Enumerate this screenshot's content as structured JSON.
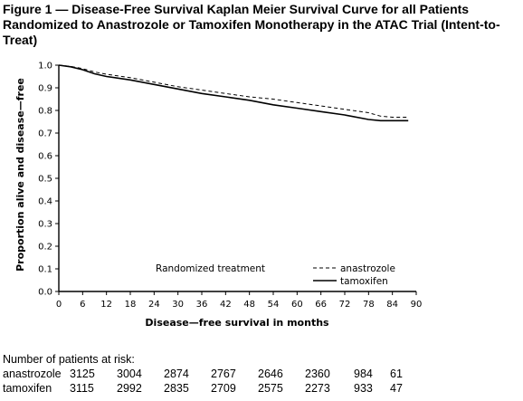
{
  "figure": {
    "title": "Figure 1 — Disease-Free Survival Kaplan Meier Survival Curve for all Patients Randomized to Anastrozole or Tamoxifen Monotherapy in the ATAC Trial (Intent-to-Treat)"
  },
  "chart_data": {
    "type": "line",
    "title": "",
    "xlabel": "Disease—free survival in months",
    "ylabel": "Proportion alive and disease—free",
    "xlim": [
      0,
      90
    ],
    "ylim": [
      0.0,
      1.0
    ],
    "x_ticks": [
      "0",
      "6",
      "12",
      "18",
      "24",
      "30",
      "36",
      "42",
      "48",
      "54",
      "60",
      "66",
      "72",
      "78",
      "84",
      "90"
    ],
    "y_ticks": [
      "0.0",
      "0.1",
      "0.2",
      "0.3",
      "0.4",
      "0.5",
      "0.6",
      "0.7",
      "0.8",
      "0.9",
      "1.0"
    ],
    "legend_title": "Randomized treatment",
    "legend_position": "bottom-right",
    "grid": false,
    "series": [
      {
        "name": "anastrozole",
        "style": "dashed",
        "x": [
          0,
          3,
          6,
          9,
          12,
          18,
          24,
          30,
          36,
          42,
          48,
          54,
          60,
          66,
          72,
          78,
          81,
          84,
          87,
          88
        ],
        "y": [
          1.0,
          0.995,
          0.985,
          0.97,
          0.96,
          0.945,
          0.925,
          0.905,
          0.89,
          0.875,
          0.86,
          0.85,
          0.835,
          0.82,
          0.805,
          0.79,
          0.775,
          0.77,
          0.77,
          0.77
        ]
      },
      {
        "name": "tamoxifen",
        "style": "solid",
        "x": [
          0,
          3,
          6,
          9,
          12,
          18,
          24,
          30,
          36,
          42,
          48,
          54,
          60,
          66,
          72,
          78,
          81,
          84,
          87,
          88
        ],
        "y": [
          1.0,
          0.993,
          0.98,
          0.962,
          0.95,
          0.935,
          0.915,
          0.895,
          0.875,
          0.86,
          0.845,
          0.825,
          0.81,
          0.795,
          0.78,
          0.76,
          0.755,
          0.755,
          0.755,
          0.755
        ]
      }
    ]
  },
  "risk_table": {
    "title": "Number of patients at risk:",
    "rows": [
      {
        "name": "anastrozole",
        "values": [
          "3125",
          "3004",
          "2874",
          "2767",
          "2646",
          "2360",
          "984",
          "61"
        ]
      },
      {
        "name": "tamoxifen",
        "values": [
          "3115",
          "2992",
          "2835",
          "2709",
          "2575",
          "2273",
          "933",
          "47"
        ]
      }
    ]
  }
}
